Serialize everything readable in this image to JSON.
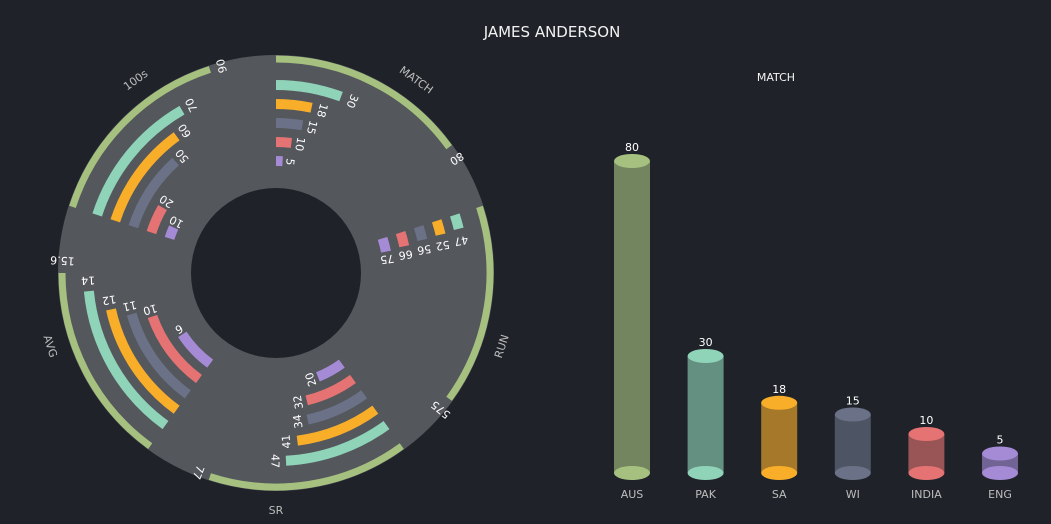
{
  "title": "JAMES ANDERSON",
  "colors": {
    "background": "#1f2329",
    "donut": "#54575c",
    "hole": "#1f2329",
    "AUS": "#a6c17f",
    "PAK": "#8fd3b8",
    "SA": "#f9ae2a",
    "WI": "#6b7287",
    "INDIA": "#e57373",
    "ENG": "#a58bd6"
  },
  "chart_data": [
    {
      "type": "radial-bar",
      "title": "JAMES ANDERSON",
      "categories": [
        "AUS",
        "PAK",
        "SA",
        "WI",
        "INDIA",
        "ENG"
      ],
      "metrics": [
        {
          "name": "MATCH",
          "max": 80,
          "values": [
            80,
            30,
            18,
            15,
            10,
            5
          ],
          "labels": [
            "80",
            "30",
            "18",
            "15",
            "10",
            "5"
          ]
        },
        {
          "name": "RUN",
          "max": 575,
          "values": [
            575,
            47,
            52,
            56,
            66,
            75
          ],
          "labels": [
            "575",
            "47",
            "52",
            "56",
            "66",
            "75"
          ]
        },
        {
          "name": "SR",
          "max": 77,
          "values": [
            77,
            47,
            41,
            34,
            32,
            20
          ],
          "labels": [
            "77",
            "47",
            "41",
            "34",
            "32",
            "20"
          ]
        },
        {
          "name": "AVG",
          "max": 15.6,
          "values": [
            15.6,
            14,
            12,
            11,
            10,
            6
          ],
          "labels": [
            "15.6",
            "14",
            "12",
            "11",
            "10",
            "6"
          ]
        },
        {
          "name": "100s",
          "max": 90,
          "values": [
            90,
            70,
            60,
            50,
            20,
            10
          ],
          "labels": [
            "90",
            "70",
            "60",
            "50",
            "20",
            "10"
          ]
        }
      ]
    },
    {
      "type": "bar",
      "title": "MATCH",
      "categories": [
        "AUS",
        "PAK",
        "SA",
        "WI",
        "INDIA",
        "ENG"
      ],
      "values": [
        80,
        30,
        18,
        15,
        10,
        5
      ],
      "labels": [
        "80",
        "30",
        "18",
        "15",
        "10",
        "5"
      ],
      "ylim": [
        0,
        80
      ]
    }
  ]
}
